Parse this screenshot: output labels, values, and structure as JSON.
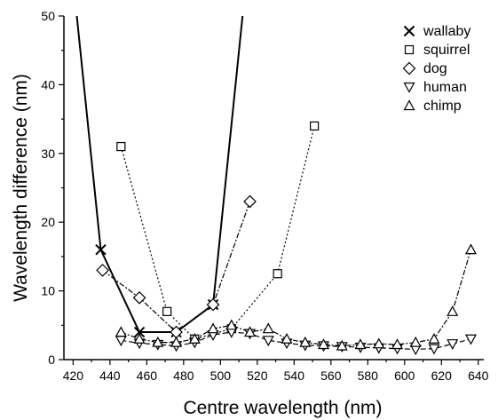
{
  "chart_data": {
    "type": "line",
    "title": "",
    "xlabel": "Centre wavelength (nm)",
    "ylabel": "Wavelength difference (nm)",
    "xlim": [
      415,
      643
    ],
    "ylim": [
      0,
      50
    ],
    "xticks": [
      420,
      440,
      460,
      480,
      500,
      520,
      540,
      560,
      580,
      600,
      620,
      640
    ],
    "yticks": [
      0,
      10,
      20,
      30,
      40,
      50
    ],
    "grid": false,
    "legend_position": "top-right",
    "series": [
      {
        "name": "wallaby",
        "marker": "cross",
        "line": "solid",
        "points": [
          [
            422,
            50
          ],
          [
            435,
            16
          ],
          [
            456,
            4
          ],
          [
            476,
            4
          ],
          [
            496,
            8
          ],
          [
            512,
            50
          ]
        ],
        "marked_indices": [
          1,
          2,
          3,
          4
        ]
      },
      {
        "name": "squirrel",
        "marker": "square",
        "line": "dotted",
        "points": [
          [
            446,
            31
          ],
          [
            471,
            7
          ],
          [
            486,
            3
          ],
          [
            506,
            4.5
          ],
          [
            531,
            12.5
          ],
          [
            551,
            34
          ]
        ],
        "marked_indices": [
          0,
          1,
          2,
          3,
          4,
          5
        ]
      },
      {
        "name": "dog",
        "marker": "diamond",
        "line": "dashdot",
        "points": [
          [
            436,
            13
          ],
          [
            456,
            9
          ],
          [
            476,
            4
          ],
          [
            496,
            8
          ],
          [
            516,
            23
          ]
        ],
        "marked_indices": [
          0,
          1,
          2,
          3,
          4
        ]
      },
      {
        "name": "human",
        "marker": "triangle-down",
        "line": "dashed",
        "points": [
          [
            446,
            2.8
          ],
          [
            456,
            2.4
          ],
          [
            466,
            2.2
          ],
          [
            476,
            2.0
          ],
          [
            486,
            2.5
          ],
          [
            496,
            3.6
          ],
          [
            506,
            4.0
          ],
          [
            516,
            3.8
          ],
          [
            526,
            2.8
          ],
          [
            536,
            2.4
          ],
          [
            546,
            2.1
          ],
          [
            556,
            2.0
          ],
          [
            566,
            1.9
          ],
          [
            576,
            1.8
          ],
          [
            586,
            1.7
          ],
          [
            596,
            1.6
          ],
          [
            606,
            1.5
          ],
          [
            616,
            1.6
          ],
          [
            626,
            2.3
          ],
          [
            636,
            3.0
          ]
        ],
        "marked_indices": [
          0,
          1,
          2,
          3,
          4,
          5,
          6,
          7,
          8,
          9,
          10,
          11,
          12,
          13,
          14,
          15,
          16,
          17,
          18,
          19
        ]
      },
      {
        "name": "chimp",
        "marker": "triangle-up",
        "line": "dashdot",
        "points": [
          [
            446,
            4.0
          ],
          [
            456,
            3.0
          ],
          [
            466,
            2.5
          ],
          [
            476,
            2.5
          ],
          [
            486,
            3.0
          ],
          [
            496,
            4.5
          ],
          [
            506,
            5.0
          ],
          [
            516,
            4.0
          ],
          [
            526,
            4.5
          ],
          [
            536,
            3.0
          ],
          [
            546,
            2.5
          ],
          [
            556,
            2.2
          ],
          [
            566,
            2.0
          ],
          [
            576,
            2.2
          ],
          [
            586,
            2.3
          ],
          [
            596,
            2.2
          ],
          [
            606,
            2.5
          ],
          [
            616,
            3.0
          ],
          [
            626,
            7.0
          ],
          [
            636,
            16.0
          ]
        ],
        "marked_indices": [
          0,
          1,
          2,
          3,
          4,
          5,
          6,
          7,
          8,
          9,
          10,
          11,
          12,
          13,
          14,
          15,
          16,
          17,
          18,
          19
        ]
      }
    ]
  }
}
